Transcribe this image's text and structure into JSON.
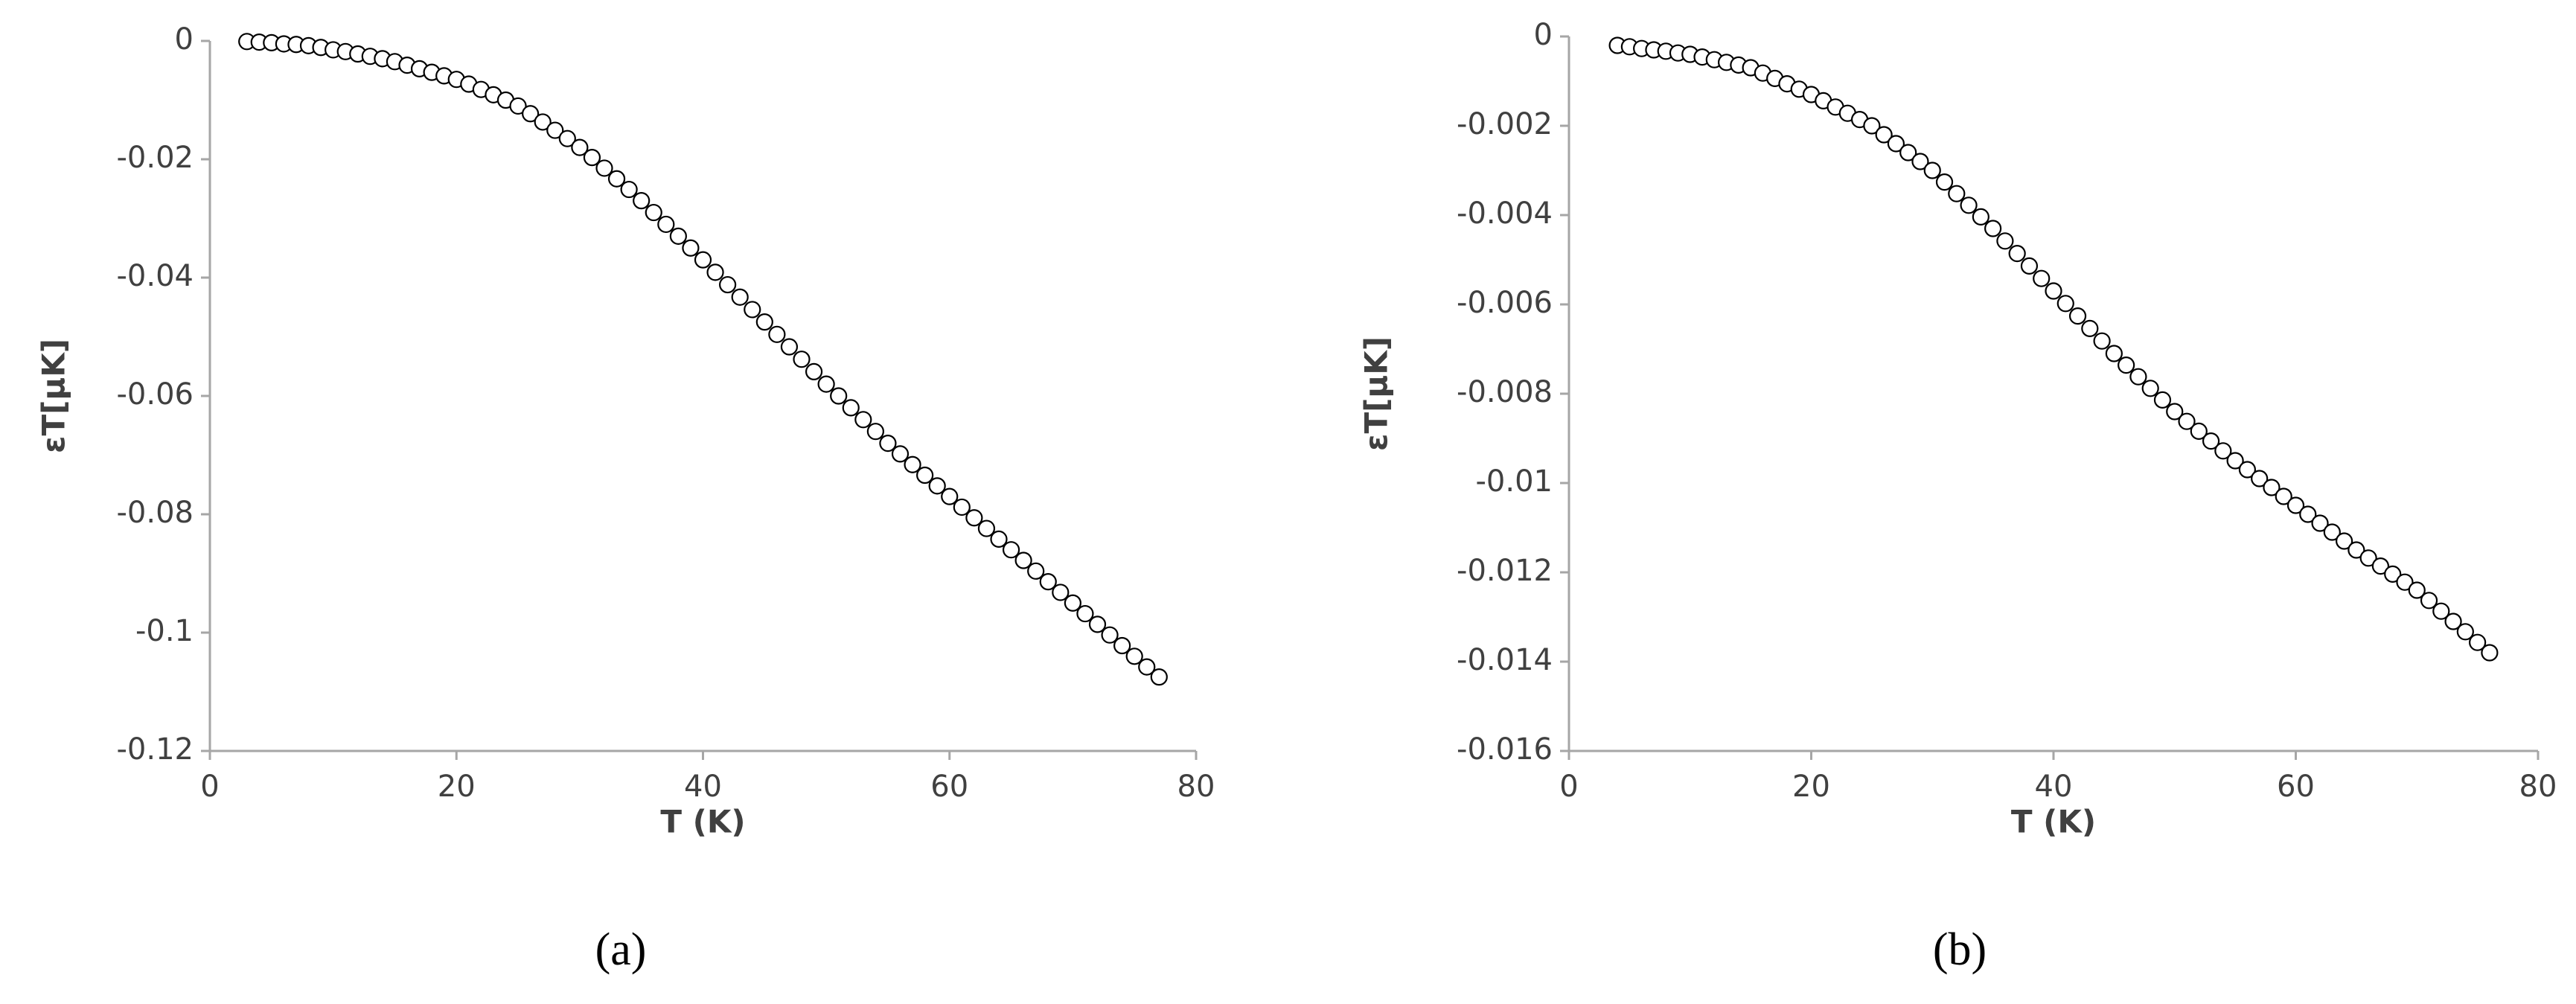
{
  "chart_data": [
    {
      "type": "scatter",
      "caption": "(a)",
      "x_label": "T (K)",
      "y_label": "εT[μK]",
      "xlim": [
        0,
        80
      ],
      "xticks": [
        0,
        20,
        40,
        60,
        80
      ],
      "ylim": [
        -0.12,
        0
      ],
      "yticks": [
        0,
        -0.02,
        -0.04,
        -0.06,
        -0.08,
        -0.1,
        -0.12
      ],
      "marker_edge": "#000000",
      "marker_face": "#ffffff",
      "x": [
        3,
        4,
        5,
        6,
        7,
        8,
        9,
        10,
        11,
        12,
        13,
        14,
        15,
        16,
        17,
        18,
        19,
        20,
        21,
        22,
        23,
        24,
        25,
        26,
        27,
        28,
        29,
        30,
        31,
        32,
        33,
        34,
        35,
        36,
        37,
        38,
        39,
        40,
        41,
        42,
        43,
        44,
        45,
        46,
        47,
        48,
        49,
        50,
        51,
        52,
        53,
        54,
        55,
        56,
        57,
        58,
        59,
        60,
        61,
        62,
        63,
        64,
        65,
        66,
        67,
        68,
        69,
        70,
        71,
        72,
        73,
        74,
        75,
        76,
        77
      ],
      "values": [
        -0.0001,
        -0.0002,
        -0.0003,
        -0.0005,
        -0.0006,
        -0.0008,
        -0.0011,
        -0.0015,
        -0.0018,
        -0.0022,
        -0.0026,
        -0.003,
        -0.0035,
        -0.0041,
        -0.0047,
        -0.0053,
        -0.0059,
        -0.0065,
        -0.0073,
        -0.0082,
        -0.0091,
        -0.01,
        -0.011,
        -0.0123,
        -0.0137,
        -0.0151,
        -0.0165,
        -0.018,
        -0.0197,
        -0.0215,
        -0.0233,
        -0.0251,
        -0.027,
        -0.029,
        -0.031,
        -0.033,
        -0.035,
        -0.037,
        -0.0391,
        -0.0412,
        -0.0433,
        -0.0454,
        -0.0475,
        -0.0496,
        -0.0517,
        -0.0538,
        -0.0559,
        -0.058,
        -0.06,
        -0.062,
        -0.064,
        -0.066,
        -0.068,
        -0.0698,
        -0.0716,
        -0.0734,
        -0.0752,
        -0.077,
        -0.0788,
        -0.0806,
        -0.0824,
        -0.0842,
        -0.086,
        -0.0878,
        -0.0896,
        -0.0914,
        -0.0932,
        -0.095,
        -0.0968,
        -0.0986,
        -0.1004,
        -0.1022,
        -0.104,
        -0.1058,
        -0.1075
      ]
    },
    {
      "type": "scatter",
      "caption": "(b)",
      "x_label": "T (K)",
      "y_label": "εT[μK]",
      "xlim": [
        0,
        80
      ],
      "xticks": [
        0,
        20,
        40,
        60,
        80
      ],
      "ylim": [
        -0.016,
        0
      ],
      "yticks": [
        0,
        -0.002,
        -0.004,
        -0.006,
        -0.008,
        -0.01,
        -0.012,
        -0.014,
        -0.016
      ],
      "marker_edge": "#000000",
      "marker_face": "#ffffff",
      "x": [
        4,
        5,
        6,
        7,
        8,
        9,
        10,
        11,
        12,
        13,
        14,
        15,
        16,
        17,
        18,
        19,
        20,
        21,
        22,
        23,
        24,
        25,
        26,
        27,
        28,
        29,
        30,
        31,
        32,
        33,
        34,
        35,
        36,
        37,
        38,
        39,
        40,
        41,
        42,
        43,
        44,
        45,
        46,
        47,
        48,
        49,
        50,
        51,
        52,
        53,
        54,
        55,
        56,
        57,
        58,
        59,
        60,
        61,
        62,
        63,
        64,
        65,
        66,
        67,
        68,
        69,
        70,
        71,
        72,
        73,
        74,
        75,
        76
      ],
      "values": [
        -0.0002,
        -0.00023,
        -0.00027,
        -0.0003,
        -0.00033,
        -0.00037,
        -0.0004,
        -0.00046,
        -0.00052,
        -0.00058,
        -0.00064,
        -0.0007,
        -0.00082,
        -0.00094,
        -0.00106,
        -0.00118,
        -0.0013,
        -0.00144,
        -0.00158,
        -0.00172,
        -0.00186,
        -0.002,
        -0.0022,
        -0.0024,
        -0.0026,
        -0.0028,
        -0.003,
        -0.00326,
        -0.00352,
        -0.00378,
        -0.00404,
        -0.0043,
        -0.00458,
        -0.00486,
        -0.00514,
        -0.00542,
        -0.0057,
        -0.00598,
        -0.00626,
        -0.00654,
        -0.00682,
        -0.0071,
        -0.00736,
        -0.00762,
        -0.00788,
        -0.00814,
        -0.0084,
        -0.00862,
        -0.00884,
        -0.00906,
        -0.00928,
        -0.0095,
        -0.0097,
        -0.0099,
        -0.0101,
        -0.0103,
        -0.0105,
        -0.0107,
        -0.0109,
        -0.0111,
        -0.0113,
        -0.0115,
        -0.01168,
        -0.01186,
        -0.01204,
        -0.01222,
        -0.0124,
        -0.01263,
        -0.01287,
        -0.0131,
        -0.01333,
        -0.01357,
        -0.0138
      ]
    }
  ]
}
